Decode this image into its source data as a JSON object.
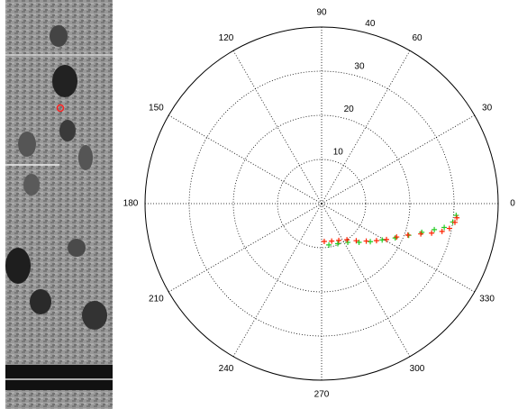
{
  "chart_data": {
    "type": "polar",
    "rlim": [
      0,
      40
    ],
    "rticks": [
      10,
      20,
      30,
      40
    ],
    "thetaticks": [
      0,
      30,
      60,
      90,
      120,
      150,
      180,
      210,
      240,
      270,
      300,
      330
    ],
    "grid": true,
    "series": [
      {
        "color": "#22cc22",
        "theta": [
          280,
          292,
          304,
          314,
          322,
          329,
          335,
          340,
          344,
          347,
          349,
          352,
          355
        ],
        "r": [
          9.5,
          9.8,
          10.6,
          12.2,
          14.0,
          16.0,
          18.4,
          21.0,
          23.6,
          26.2,
          28.3,
          30.0,
          30.6
        ]
      },
      {
        "color": "#ff2200",
        "theta": [
          274,
          285,
          295,
          305,
          313,
          320,
          326,
          331,
          336,
          340,
          343,
          345,
          347,
          349,
          352,
          354
        ],
        "r": [
          8.6,
          8.8,
          9.2,
          10.0,
          11.5,
          13.2,
          15.0,
          16.8,
          18.6,
          20.8,
          23.5,
          25.8,
          28.0,
          29.5,
          30.5,
          30.8
        ]
      }
    ]
  }
}
